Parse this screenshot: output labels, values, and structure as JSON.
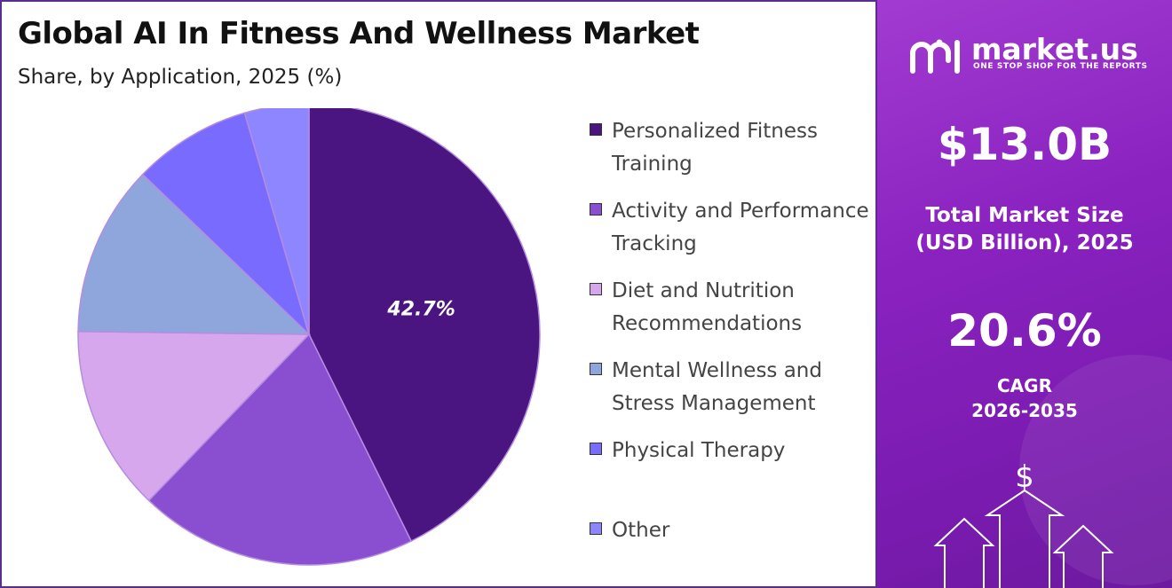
{
  "header": {
    "title": "Global AI In Fitness And Wellness Market",
    "subtitle": "Share, by Application, 2025 (%)"
  },
  "chart_data": {
    "type": "pie",
    "start_angle_deg": 0,
    "direction": "clockwise",
    "slices": [
      {
        "label": "Personalized Fitness Training",
        "value": 42.7,
        "color": "#4a1580",
        "show_label": true,
        "data_label": "42.7%"
      },
      {
        "label": "Activity and Performance Tracking",
        "value": 19.5,
        "color": "#8a4fd0"
      },
      {
        "label": "Diet and Nutrition Recommendations",
        "value": 13.0,
        "color": "#d7a7ee"
      },
      {
        "label": "Mental Wellness and Stress Management",
        "value": 12.0,
        "color": "#8fa6dd"
      },
      {
        "label": "Physical Therapy",
        "value": 8.3,
        "color": "#7a6bff"
      },
      {
        "label": "Other",
        "value": 4.5,
        "color": "#8d86ff"
      }
    ]
  },
  "legend": {
    "items": [
      {
        "label": "Personalized Fitness Training",
        "color": "#4a1580"
      },
      {
        "label": "Activity and Performance Tracking",
        "color": "#8a4fd0"
      },
      {
        "label": "Diet and Nutrition Recommendations",
        "color": "#d7a7ee"
      },
      {
        "label": "Mental Wellness and Stress Management",
        "color": "#8fa6dd"
      },
      {
        "label": "Physical Therapy",
        "color": "#7a6bff"
      },
      {
        "label": "Other",
        "color": "#8d86ff"
      }
    ]
  },
  "sidebar": {
    "brand": "market.us",
    "tagline": "ONE STOP SHOP FOR THE REPORTS",
    "market_size_value": "$13.0B",
    "market_size_label_line1": "Total Market Size",
    "market_size_label_line2": "(USD Billion), 2025",
    "cagr_value": "20.6%",
    "cagr_label_line1": "CAGR",
    "cagr_label_line2": "2026-2035",
    "currency_symbol": "$"
  }
}
